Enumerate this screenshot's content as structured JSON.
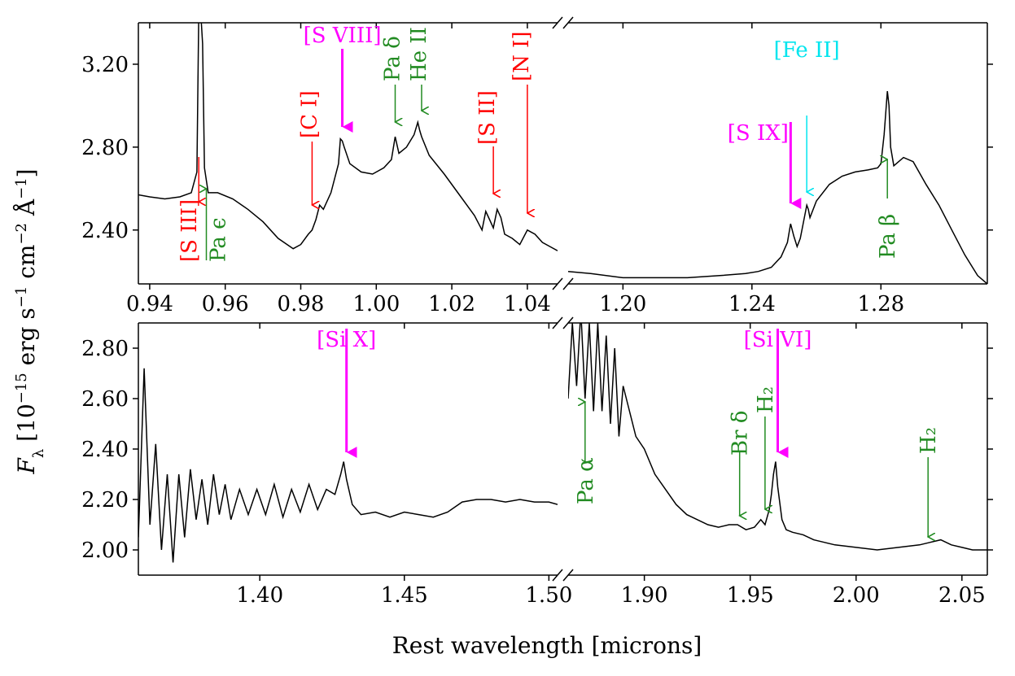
{
  "chart_data": {
    "type": "line",
    "ylabel": "F_λ [10^-15 erg s^-1 cm^-2 Å^-1]",
    "xlabel": "Rest wavelength [microns]",
    "colors": {
      "spectrum": "#000000",
      "red": "#ff0000",
      "green": "#228B22",
      "magenta": "#ff00ff",
      "cyan": "#00e5ee"
    },
    "panels": [
      {
        "name": "top-left",
        "xlim": [
          0.937,
          1.048
        ],
        "ylim": [
          2.14,
          3.4
        ],
        "xticks": [
          0.94,
          0.96,
          0.98,
          1.0,
          1.02,
          1.04
        ],
        "xtick_labels": [
          "0.94",
          "0.96",
          "0.98",
          "1.00",
          "1.02",
          "1.04"
        ],
        "yticks": [
          2.4,
          2.8,
          3.2
        ],
        "ytick_labels": [
          "2.40",
          "2.80",
          "3.20"
        ],
        "spectrum": {
          "x": [
            0.937,
            0.94,
            0.944,
            0.948,
            0.951,
            0.9525,
            0.953,
            0.9535,
            0.954,
            0.9545,
            0.9555,
            0.958,
            0.962,
            0.966,
            0.97,
            0.974,
            0.978,
            0.98,
            0.982,
            0.983,
            0.984,
            0.985,
            0.986,
            0.988,
            0.99,
            0.9905,
            0.991,
            0.9915,
            0.993,
            0.996,
            0.999,
            1.002,
            1.004,
            1.005,
            1.006,
            1.008,
            1.01,
            1.011,
            1.0115,
            1.012,
            1.014,
            1.018,
            1.022,
            1.026,
            1.028,
            1.029,
            1.03,
            1.031,
            1.032,
            1.033,
            1.034,
            1.036,
            1.038,
            1.04,
            1.042,
            1.044,
            1.046,
            1.048
          ],
          "y": [
            2.57,
            2.56,
            2.55,
            2.56,
            2.58,
            2.68,
            3.45,
            3.45,
            3.3,
            2.7,
            2.58,
            2.58,
            2.55,
            2.5,
            2.44,
            2.36,
            2.31,
            2.33,
            2.38,
            2.4,
            2.45,
            2.52,
            2.5,
            2.58,
            2.72,
            2.84,
            2.83,
            2.8,
            2.72,
            2.68,
            2.67,
            2.7,
            2.74,
            2.85,
            2.77,
            2.8,
            2.86,
            2.92,
            2.88,
            2.85,
            2.76,
            2.67,
            2.57,
            2.47,
            2.4,
            2.49,
            2.45,
            2.41,
            2.5,
            2.46,
            2.38,
            2.36,
            2.33,
            2.4,
            2.38,
            2.34,
            2.32,
            2.3
          ]
        },
        "lines": [
          {
            "label": "[S III]",
            "color": "red",
            "x": 0.953
          },
          {
            "label": "Pa ϵ",
            "color": "green",
            "x": 0.955
          },
          {
            "label": "[C I]",
            "color": "red",
            "x": 0.983
          },
          {
            "label": "[S VIII]",
            "color": "magenta",
            "x": 0.991
          },
          {
            "label": "Pa δ",
            "color": "green",
            "x": 1.005
          },
          {
            "label": "He II",
            "color": "green",
            "x": 1.012
          },
          {
            "label": "[S II]",
            "color": "red",
            "x": 1.031
          },
          {
            "label": "[N I]",
            "color": "red",
            "x": 1.04
          }
        ]
      },
      {
        "name": "top-right",
        "xlim": [
          1.183,
          1.313
        ],
        "ylim": [
          2.14,
          3.4
        ],
        "xticks": [
          1.2,
          1.24,
          1.28
        ],
        "xtick_labels": [
          "1.20",
          "1.24",
          "1.28"
        ],
        "spectrum": {
          "x": [
            1.183,
            1.19,
            1.2,
            1.21,
            1.22,
            1.23,
            1.238,
            1.242,
            1.246,
            1.249,
            1.251,
            1.252,
            1.253,
            1.254,
            1.255,
            1.256,
            1.257,
            1.2575,
            1.258,
            1.26,
            1.264,
            1.268,
            1.272,
            1.276,
            1.279,
            1.28,
            1.281,
            1.282,
            1.2825,
            1.283,
            1.284,
            1.287,
            1.29,
            1.294,
            1.298,
            1.302,
            1.306,
            1.31,
            1.313
          ],
          "y": [
            2.2,
            2.19,
            2.17,
            2.17,
            2.17,
            2.18,
            2.19,
            2.2,
            2.22,
            2.27,
            2.34,
            2.43,
            2.37,
            2.32,
            2.36,
            2.44,
            2.52,
            2.5,
            2.46,
            2.54,
            2.62,
            2.66,
            2.68,
            2.69,
            2.7,
            2.72,
            2.86,
            3.07,
            3.0,
            2.8,
            2.71,
            2.75,
            2.73,
            2.62,
            2.52,
            2.4,
            2.28,
            2.18,
            2.14
          ]
        },
        "lines": [
          {
            "label": "[S IX]",
            "color": "magenta",
            "x": 1.252
          },
          {
            "label": "[Fe II]",
            "color": "cyan",
            "x": 1.257
          },
          {
            "label": "Pa β",
            "color": "green",
            "x": 1.282
          }
        ]
      },
      {
        "name": "bottom-left",
        "xlim": [
          1.358,
          1.503
        ],
        "ylim": [
          1.9,
          2.9
        ],
        "xticks": [
          1.4,
          1.45,
          1.5
        ],
        "xtick_labels": [
          "1.40",
          "1.45",
          "1.50"
        ],
        "yticks": [
          2.0,
          2.2,
          2.4,
          2.6,
          2.8
        ],
        "ytick_labels": [
          "2.00",
          "2.20",
          "2.40",
          "2.60",
          "2.80"
        ],
        "spectrum": {
          "x": [
            1.358,
            1.36,
            1.362,
            1.364,
            1.366,
            1.368,
            1.37,
            1.372,
            1.374,
            1.376,
            1.378,
            1.38,
            1.382,
            1.384,
            1.386,
            1.388,
            1.39,
            1.393,
            1.396,
            1.399,
            1.402,
            1.405,
            1.408,
            1.411,
            1.414,
            1.417,
            1.42,
            1.423,
            1.426,
            1.428,
            1.429,
            1.43,
            1.432,
            1.435,
            1.44,
            1.445,
            1.45,
            1.455,
            1.46,
            1.465,
            1.47,
            1.475,
            1.48,
            1.485,
            1.49,
            1.495,
            1.5,
            1.503
          ],
          "y": [
            2.05,
            2.72,
            2.1,
            2.42,
            2.0,
            2.3,
            1.95,
            2.3,
            2.05,
            2.32,
            2.12,
            2.28,
            2.1,
            2.3,
            2.14,
            2.26,
            2.12,
            2.24,
            2.14,
            2.24,
            2.14,
            2.26,
            2.13,
            2.24,
            2.15,
            2.26,
            2.16,
            2.24,
            2.22,
            2.3,
            2.35,
            2.28,
            2.18,
            2.14,
            2.15,
            2.13,
            2.15,
            2.14,
            2.13,
            2.15,
            2.19,
            2.2,
            2.2,
            2.19,
            2.2,
            2.19,
            2.19,
            2.18
          ]
        },
        "lines": [
          {
            "label": "[Si X]",
            "color": "magenta",
            "x": 1.43
          }
        ]
      },
      {
        "name": "bottom-right",
        "xlim": [
          1.864,
          2.062
        ],
        "ylim": [
          1.9,
          2.9
        ],
        "xticks": [
          1.9,
          1.95,
          2.0,
          2.05
        ],
        "xtick_labels": [
          "1.90",
          "1.95",
          "2.00",
          "2.05"
        ],
        "spectrum": {
          "x": [
            1.864,
            1.866,
            1.868,
            1.87,
            1.872,
            1.874,
            1.876,
            1.878,
            1.88,
            1.882,
            1.884,
            1.886,
            1.888,
            1.89,
            1.893,
            1.896,
            1.9,
            1.905,
            1.91,
            1.915,
            1.92,
            1.925,
            1.93,
            1.935,
            1.94,
            1.944,
            1.948,
            1.952,
            1.955,
            1.957,
            1.959,
            1.96,
            1.961,
            1.962,
            1.963,
            1.965,
            1.967,
            1.97,
            1.975,
            1.98,
            1.985,
            1.99,
            2.0,
            2.01,
            2.02,
            2.03,
            2.035,
            2.04,
            2.045,
            2.05,
            2.055,
            2.062
          ],
          "y": [
            2.6,
            2.9,
            2.65,
            2.95,
            2.6,
            2.9,
            2.55,
            2.9,
            2.55,
            2.85,
            2.5,
            2.8,
            2.45,
            2.65,
            2.55,
            2.45,
            2.4,
            2.3,
            2.24,
            2.18,
            2.14,
            2.12,
            2.1,
            2.09,
            2.1,
            2.1,
            2.08,
            2.09,
            2.12,
            2.1,
            2.16,
            2.22,
            2.3,
            2.35,
            2.25,
            2.12,
            2.08,
            2.07,
            2.06,
            2.04,
            2.03,
            2.02,
            2.01,
            2.0,
            2.01,
            2.02,
            2.03,
            2.04,
            2.02,
            2.01,
            2.0,
            2.0
          ]
        },
        "lines": [
          {
            "label": "Pa α",
            "color": "green",
            "x": 1.872
          },
          {
            "label": "Br δ",
            "color": "green",
            "x": 1.945
          },
          {
            "label": "H₂",
            "color": "green",
            "x": 1.957
          },
          {
            "label": "[Si VI]",
            "color": "magenta",
            "x": 1.963
          },
          {
            "label": "H₂",
            "color": "green",
            "x": 2.034
          }
        ]
      }
    ]
  }
}
